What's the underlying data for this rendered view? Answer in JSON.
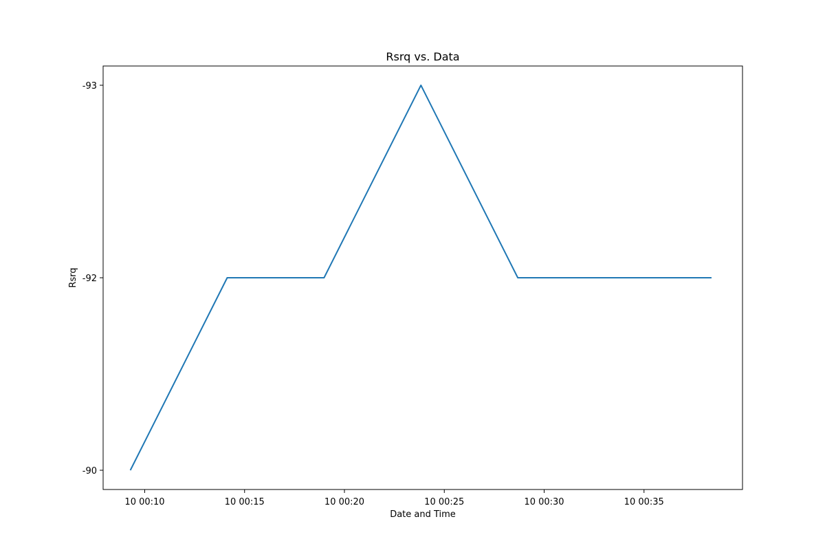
{
  "chart_data": {
    "type": "line",
    "title": "Rsrq vs. Data",
    "xlabel": "Date and Time",
    "ylabel": "Rsrq",
    "x_ticks": [
      "10 00:10",
      "10 00:15",
      "10 00:20",
      "10 00:25",
      "10 00:30",
      "10 00:35"
    ],
    "x_tick_minutes": [
      10,
      15,
      20,
      25,
      30,
      35
    ],
    "y_ticks": [
      "-90",
      "-92",
      "-93"
    ],
    "x_minutes": [
      9.28,
      14.13,
      18.98,
      23.83,
      28.68,
      38.38
    ],
    "y_categories": [
      "-90",
      "-92",
      "-92",
      "-93",
      "-92",
      "-92"
    ],
    "grid": false,
    "line_color": "#1f77b4"
  }
}
